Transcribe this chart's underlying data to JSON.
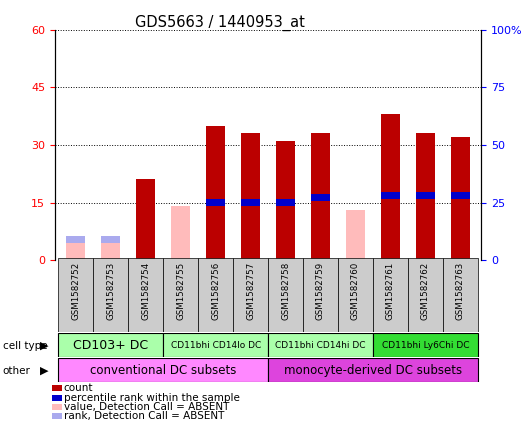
{
  "title": "GDS5663 / 1440953_at",
  "samples": [
    "GSM1582752",
    "GSM1582753",
    "GSM1582754",
    "GSM1582755",
    "GSM1582756",
    "GSM1582757",
    "GSM1582758",
    "GSM1582759",
    "GSM1582760",
    "GSM1582761",
    "GSM1582762",
    "GSM1582763"
  ],
  "red_values": [
    0,
    0,
    21,
    0,
    35,
    33,
    31,
    33,
    0,
    38,
    33,
    32
  ],
  "blue_values": [
    0,
    0,
    0,
    0,
    25,
    25,
    25,
    27,
    0,
    28,
    28,
    28
  ],
  "pink_values": [
    5,
    5,
    0,
    14,
    0,
    0,
    0,
    0,
    13,
    0,
    0,
    0
  ],
  "lightblue_values": [
    9,
    9,
    0,
    0,
    0,
    0,
    0,
    0,
    0,
    0,
    0,
    0
  ],
  "ylim_left": [
    0,
    60
  ],
  "ylim_right": [
    0,
    100
  ],
  "yticks_left": [
    0,
    15,
    30,
    45,
    60
  ],
  "yticks_right": [
    0,
    25,
    50,
    75,
    100
  ],
  "bar_width": 0.55,
  "red_color": "#bb0000",
  "blue_color": "#0000cc",
  "pink_color": "#ffbbbb",
  "lightblue_color": "#aaaaee",
  "cell_type_groups": [
    {
      "label": "CD103+ DC",
      "start": 0,
      "end": 2,
      "color": "#aaffaa"
    },
    {
      "label": "CD11bhi CD14lo DC",
      "start": 3,
      "end": 5,
      "color": "#aaffaa"
    },
    {
      "label": "CD11bhi CD14hi DC",
      "start": 6,
      "end": 8,
      "color": "#aaffaa"
    },
    {
      "label": "CD11bhi Ly6Chi DC",
      "start": 9,
      "end": 11,
      "color": "#33dd33"
    }
  ],
  "other_groups": [
    {
      "label": "conventional DC subsets",
      "start": 0,
      "end": 5,
      "color": "#ff88ff"
    },
    {
      "label": "monocyte-derived DC subsets",
      "start": 6,
      "end": 11,
      "color": "#dd44dd"
    }
  ],
  "legend_items": [
    {
      "color": "#bb0000",
      "label": "count"
    },
    {
      "color": "#0000cc",
      "label": "percentile rank within the sample"
    },
    {
      "color": "#ffbbbb",
      "label": "value, Detection Call = ABSENT"
    },
    {
      "color": "#aaaaee",
      "label": "rank, Detection Call = ABSENT"
    }
  ]
}
